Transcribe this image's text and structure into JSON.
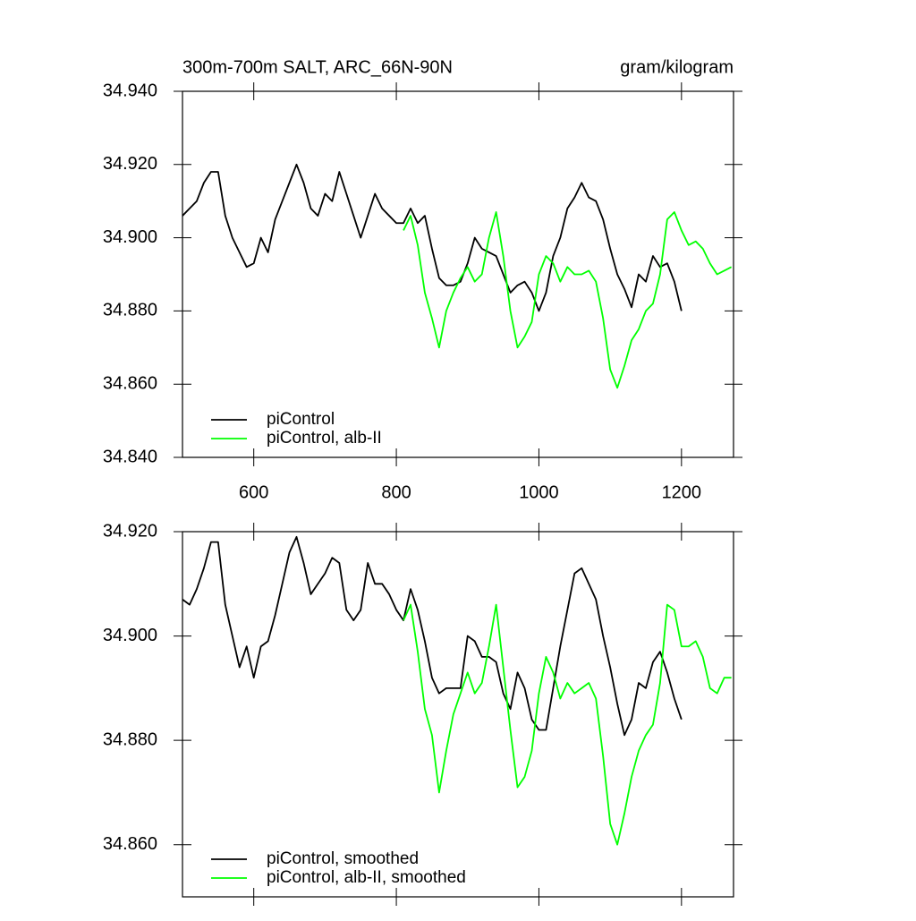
{
  "chart_data": [
    {
      "type": "line",
      "title": "300m-700m SALT, ARC_66N-90N",
      "units_label": "gram/kilogram",
      "x": [
        500,
        510,
        520,
        530,
        540,
        550,
        560,
        570,
        580,
        590,
        600,
        610,
        620,
        630,
        640,
        650,
        660,
        670,
        680,
        690,
        700,
        710,
        720,
        730,
        740,
        750,
        760,
        770,
        780,
        790,
        800,
        810,
        820,
        830,
        840,
        850,
        860,
        870,
        880,
        890,
        900,
        910,
        920,
        930,
        940,
        950,
        960,
        970,
        980,
        990,
        1000,
        1010,
        1020,
        1030,
        1040,
        1050,
        1060,
        1070,
        1080,
        1090,
        1100,
        1110,
        1120,
        1130,
        1140,
        1150,
        1160,
        1170,
        1180,
        1190,
        1200,
        1210,
        1220,
        1230,
        1240,
        1250,
        1260,
        1270
      ],
      "series": [
        {
          "name": "piControl",
          "color": "#000000",
          "values": [
            34.906,
            34.908,
            34.91,
            34.915,
            34.918,
            34.918,
            34.906,
            34.9,
            34.896,
            34.892,
            34.893,
            34.9,
            34.896,
            34.905,
            34.91,
            34.915,
            34.92,
            34.915,
            34.908,
            34.906,
            34.912,
            34.91,
            34.918,
            34.912,
            34.906,
            34.9,
            34.906,
            34.912,
            34.908,
            34.906,
            34.904,
            34.904,
            34.908,
            34.904,
            34.906,
            34.897,
            34.889,
            34.887,
            34.887,
            34.888,
            34.893,
            34.9,
            34.897,
            34.896,
            34.895,
            34.89,
            34.885,
            34.887,
            34.888,
            34.885,
            34.88,
            34.885,
            34.895,
            34.9,
            34.908,
            34.911,
            34.915,
            34.911,
            34.91,
            34.905,
            34.897,
            34.89,
            34.886,
            34.881,
            34.89,
            34.888,
            34.895,
            34.892,
            34.893,
            34.888,
            34.88,
            null,
            null,
            null,
            null,
            null,
            null,
            null
          ]
        },
        {
          "name": "piControl, alb-II",
          "color": "#00ff00",
          "values": [
            null,
            null,
            null,
            null,
            null,
            null,
            null,
            null,
            null,
            null,
            null,
            null,
            null,
            null,
            null,
            null,
            null,
            null,
            null,
            null,
            null,
            null,
            null,
            null,
            null,
            null,
            null,
            null,
            null,
            null,
            null,
            34.902,
            34.906,
            34.898,
            34.885,
            34.878,
            34.87,
            34.88,
            34.885,
            34.889,
            34.892,
            34.888,
            34.89,
            34.9,
            34.907,
            34.895,
            34.88,
            34.87,
            34.873,
            34.877,
            34.89,
            34.895,
            34.893,
            34.888,
            34.892,
            34.89,
            34.89,
            34.891,
            34.888,
            34.878,
            34.864,
            34.859,
            34.865,
            34.872,
            34.875,
            34.88,
            34.882,
            34.89,
            34.905,
            34.907,
            34.902,
            34.898,
            34.899,
            34.897,
            34.893,
            34.89,
            34.891,
            34.892
          ]
        }
      ],
      "xlim": [
        500,
        1273
      ],
      "xticks": [
        600,
        800,
        1000,
        1200
      ],
      "show_xtick_labels": true,
      "ylim": [
        34.84,
        34.94
      ],
      "yticks": [
        {
          "value": 34.84,
          "label": "34.840"
        },
        {
          "value": 34.86,
          "label": "34.860"
        },
        {
          "value": 34.88,
          "label": "34.880"
        },
        {
          "value": 34.9,
          "label": "34.900"
        },
        {
          "value": 34.92,
          "label": "34.920"
        },
        {
          "value": 34.94,
          "label": "34.940"
        }
      ],
      "legend": "lower left"
    },
    {
      "type": "line",
      "x": [
        500,
        510,
        520,
        530,
        540,
        550,
        560,
        570,
        580,
        590,
        600,
        610,
        620,
        630,
        640,
        650,
        660,
        670,
        680,
        690,
        700,
        710,
        720,
        730,
        740,
        750,
        760,
        770,
        780,
        790,
        800,
        810,
        820,
        830,
        840,
        850,
        860,
        870,
        880,
        890,
        900,
        910,
        920,
        930,
        940,
        950,
        960,
        970,
        980,
        990,
        1000,
        1010,
        1020,
        1030,
        1040,
        1050,
        1060,
        1070,
        1080,
        1090,
        1100,
        1110,
        1120,
        1130,
        1140,
        1150,
        1160,
        1170,
        1180,
        1190,
        1200,
        1210,
        1220,
        1230,
        1240,
        1250,
        1260,
        1270
      ],
      "series": [
        {
          "name": "piControl, smoothed",
          "color": "#000000",
          "values": [
            34.907,
            34.906,
            34.909,
            34.913,
            34.918,
            34.918,
            34.906,
            34.9,
            34.894,
            34.898,
            34.892,
            34.898,
            34.899,
            34.904,
            34.91,
            34.916,
            34.919,
            34.914,
            34.908,
            34.91,
            34.912,
            34.915,
            34.914,
            34.905,
            34.903,
            34.905,
            34.914,
            34.91,
            34.91,
            34.908,
            34.905,
            34.903,
            34.909,
            34.905,
            34.899,
            34.892,
            34.889,
            34.89,
            34.89,
            34.89,
            34.9,
            34.899,
            34.896,
            34.896,
            34.895,
            34.889,
            34.886,
            34.893,
            34.89,
            34.884,
            34.882,
            34.882,
            34.89,
            34.898,
            34.905,
            34.912,
            34.913,
            34.91,
            34.907,
            34.9,
            34.894,
            34.887,
            34.881,
            34.884,
            34.891,
            34.89,
            34.895,
            34.897,
            34.893,
            34.888,
            34.884,
            null,
            null,
            null,
            null,
            null,
            null,
            null
          ]
        },
        {
          "name": "piControl, alb-II, smoothed",
          "color": "#00ff00",
          "values": [
            null,
            null,
            null,
            null,
            null,
            null,
            null,
            null,
            null,
            null,
            null,
            null,
            null,
            null,
            null,
            null,
            null,
            null,
            null,
            null,
            null,
            null,
            null,
            null,
            null,
            null,
            null,
            null,
            null,
            null,
            null,
            34.903,
            34.906,
            34.897,
            34.886,
            34.881,
            34.87,
            34.878,
            34.885,
            34.889,
            34.893,
            34.889,
            34.891,
            34.898,
            34.906,
            34.894,
            34.882,
            34.871,
            34.873,
            34.878,
            34.889,
            34.896,
            34.893,
            34.888,
            34.891,
            34.889,
            34.89,
            34.891,
            34.888,
            34.877,
            34.864,
            34.86,
            34.866,
            34.873,
            34.878,
            34.881,
            34.883,
            34.891,
            34.906,
            34.905,
            34.898,
            34.898,
            34.899,
            34.896,
            34.89,
            34.889,
            34.892,
            34.892
          ]
        }
      ],
      "xlim": [
        500,
        1273
      ],
      "xticks": [
        600,
        800,
        1000,
        1200
      ],
      "show_xtick_labels": false,
      "ylim": [
        34.85,
        34.92
      ],
      "yticks": [
        {
          "value": 34.86,
          "label": "34.860"
        },
        {
          "value": 34.88,
          "label": "34.880"
        },
        {
          "value": 34.9,
          "label": "34.900"
        },
        {
          "value": 34.92,
          "label": "34.920"
        }
      ],
      "legend": "lower left"
    }
  ]
}
